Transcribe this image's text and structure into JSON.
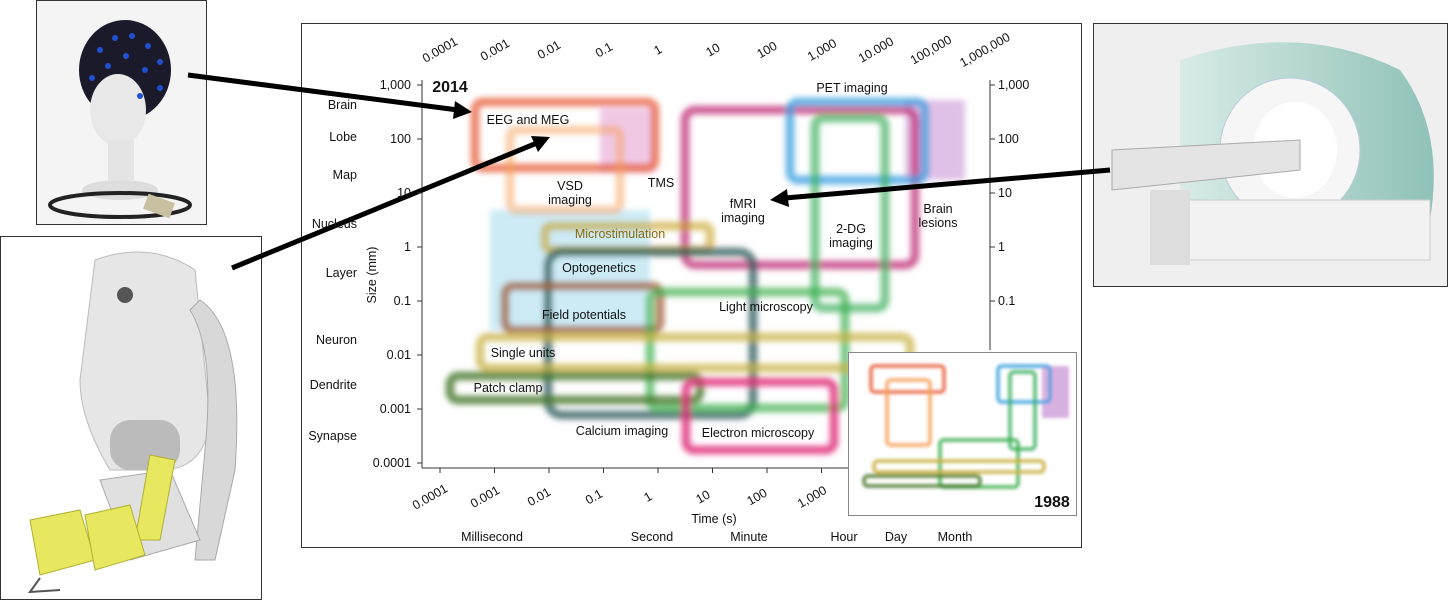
{
  "figure": {
    "year_main": "2014",
    "year_inset": "1988",
    "top_ticks": [
      "0.0001",
      "0.001",
      "0.01",
      "0.1",
      "1",
      "10",
      "100",
      "1,000",
      "10.000",
      "100,000",
      "1,000,000"
    ],
    "bottom_ticks": [
      "0.0001",
      "0.001",
      "0.01",
      "0.1",
      "1",
      "10",
      "100",
      "1,000"
    ],
    "left_ticks": [
      "1,000",
      "100",
      "10",
      "1",
      "0.1",
      "0.01",
      "0.001",
      "0.0001"
    ],
    "right_ticks": [
      "1,000",
      "100",
      "10",
      "1",
      "0.1"
    ],
    "x_label": "Time (s)",
    "y_label": "Size (mm)",
    "size_scales": [
      "Brain",
      "Lobe",
      "Map",
      "Nucleus",
      "Layer",
      "Neuron",
      "Dendrite",
      "Synapse"
    ],
    "time_scales": [
      "Millisecond",
      "Second",
      "Minute",
      "Hour",
      "Day",
      "Month"
    ],
    "methods": [
      "EEG and MEG",
      "VSD imaging",
      "TMS",
      "fMRI imaging",
      "2-DG imaging",
      "Brain lesions",
      "PET imaging",
      "Microstimulation",
      "Optogenetics",
      "Field potentials",
      "Light microscopy",
      "Single units",
      "Patch clamp",
      "Calcium imaging",
      "Electron microscopy"
    ]
  }
}
